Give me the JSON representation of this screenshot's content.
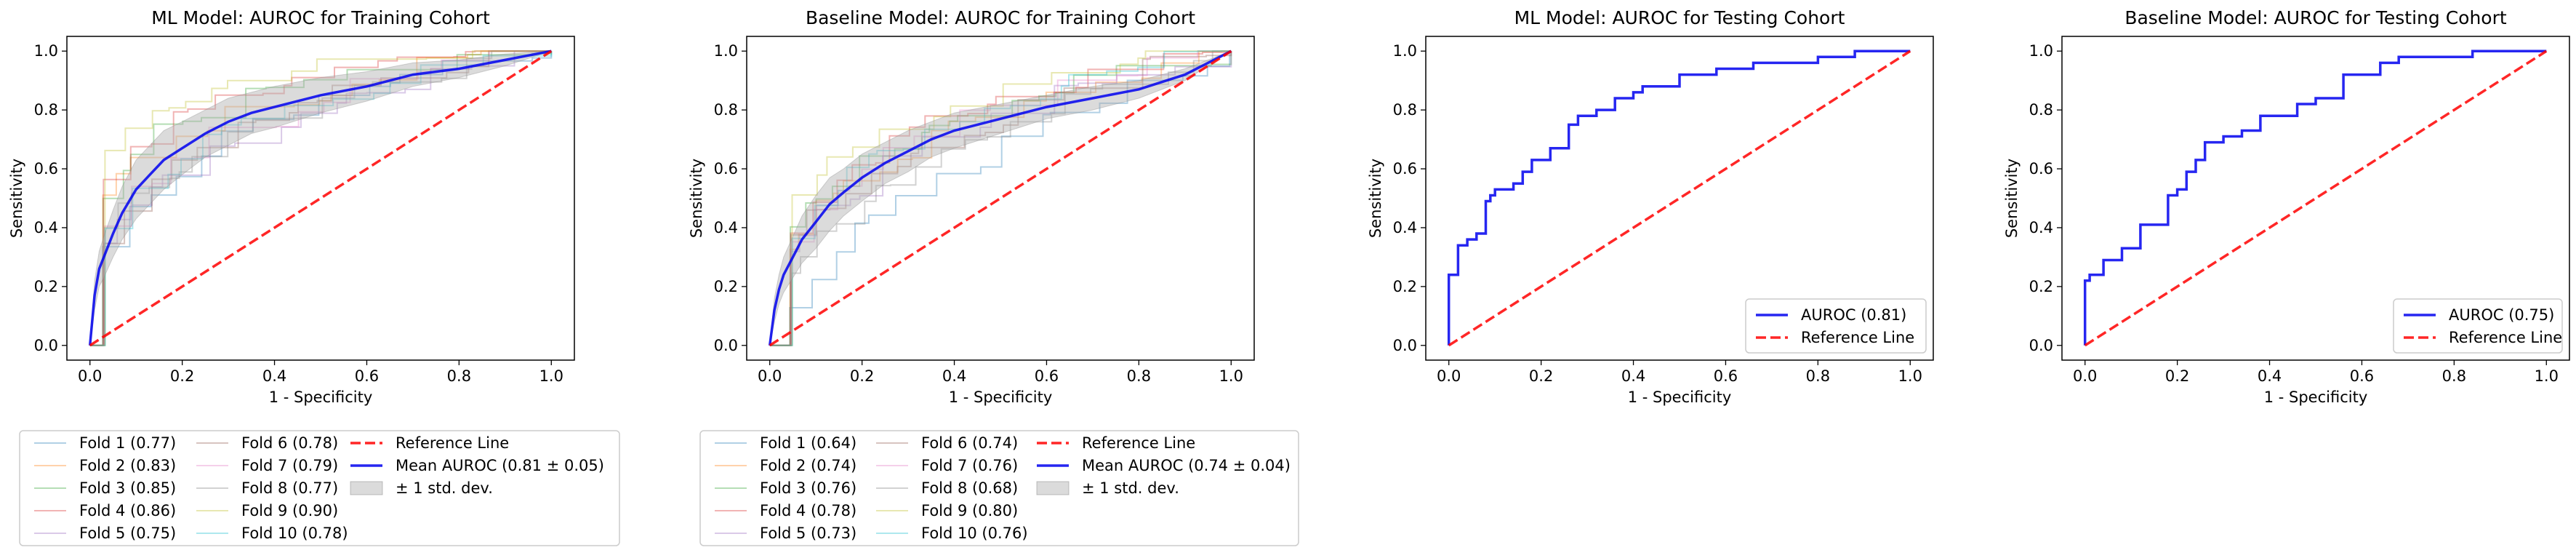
{
  "colors": {
    "mean": "#0000ee",
    "reference": "#ff0000",
    "band": "#b0b0b0",
    "folds": [
      "#1f77b4",
      "#ff7f0e",
      "#2ca02c",
      "#d62728",
      "#9467bd",
      "#8c564b",
      "#e377c2",
      "#7f7f7f",
      "#bcbd22",
      "#17becf"
    ]
  },
  "chart_data": [
    {
      "type": "line",
      "title": "ML Model: AUROC for Training Cohort",
      "xlabel": "1 - Specificity",
      "ylabel": "Sensitivity",
      "xlim": [
        -0.05,
        1.05
      ],
      "ylim": [
        -0.05,
        1.05
      ],
      "xticks": [
        "0.0",
        "0.2",
        "0.4",
        "0.6",
        "0.8",
        "1.0"
      ],
      "yticks": [
        "0.0",
        "0.2",
        "0.4",
        "0.6",
        "0.8",
        "1.0"
      ],
      "grid": false,
      "legend_placement": "below",
      "folds": [
        {
          "name": "Fold 1 (0.77)",
          "auc": 0.77
        },
        {
          "name": "Fold 2 (0.83)",
          "auc": 0.83
        },
        {
          "name": "Fold 3 (0.85)",
          "auc": 0.85
        },
        {
          "name": "Fold 4 (0.86)",
          "auc": 0.86
        },
        {
          "name": "Fold 5 (0.75)",
          "auc": 0.75
        },
        {
          "name": "Fold 6 (0.78)",
          "auc": 0.78
        },
        {
          "name": "Fold 7 (0.79)",
          "auc": 0.79
        },
        {
          "name": "Fold 8 (0.77)",
          "auc": 0.77
        },
        {
          "name": "Fold 9 (0.90)",
          "auc": 0.9
        },
        {
          "name": "Fold 10 (0.78)",
          "auc": 0.78
        }
      ],
      "mean": {
        "name": "Mean AUROC (0.81 ± 0.05)",
        "x": [
          0,
          0.01,
          0.02,
          0.03,
          0.05,
          0.07,
          0.1,
          0.13,
          0.16,
          0.2,
          0.25,
          0.3,
          0.35,
          0.4,
          0.5,
          0.6,
          0.7,
          0.8,
          0.9,
          1.0
        ],
        "y": [
          0,
          0.17,
          0.26,
          0.3,
          0.38,
          0.45,
          0.53,
          0.58,
          0.63,
          0.67,
          0.72,
          0.76,
          0.79,
          0.81,
          0.85,
          0.88,
          0.92,
          0.94,
          0.97,
          1.0
        ],
        "std": [
          0,
          0.05,
          0.06,
          0.07,
          0.08,
          0.09,
          0.1,
          0.1,
          0.1,
          0.09,
          0.08,
          0.08,
          0.07,
          0.07,
          0.06,
          0.05,
          0.04,
          0.03,
          0.02,
          0
        ]
      },
      "reference_label": "Reference Line",
      "band_label": "± 1 std. dev."
    },
    {
      "type": "line",
      "title": "Baseline Model: AUROC for Training Cohort",
      "xlabel": "1 - Specificity",
      "ylabel": "Sensitivity",
      "xlim": [
        -0.05,
        1.05
      ],
      "ylim": [
        -0.05,
        1.05
      ],
      "xticks": [
        "0.0",
        "0.2",
        "0.4",
        "0.6",
        "0.8",
        "1.0"
      ],
      "yticks": [
        "0.0",
        "0.2",
        "0.4",
        "0.6",
        "0.8",
        "1.0"
      ],
      "grid": false,
      "legend_placement": "below",
      "folds": [
        {
          "name": "Fold 1 (0.64)",
          "auc": 0.64
        },
        {
          "name": "Fold 2 (0.74)",
          "auc": 0.74
        },
        {
          "name": "Fold 3 (0.76)",
          "auc": 0.76
        },
        {
          "name": "Fold 4 (0.78)",
          "auc": 0.78
        },
        {
          "name": "Fold 5 (0.73)",
          "auc": 0.73
        },
        {
          "name": "Fold 6 (0.74)",
          "auc": 0.74
        },
        {
          "name": "Fold 7 (0.76)",
          "auc": 0.76
        },
        {
          "name": "Fold 8 (0.68)",
          "auc": 0.68
        },
        {
          "name": "Fold 9 (0.80)",
          "auc": 0.8
        },
        {
          "name": "Fold 10 (0.76)",
          "auc": 0.76
        }
      ],
      "mean": {
        "name": "Mean AUROC (0.74 ± 0.04)",
        "x": [
          0,
          0.01,
          0.02,
          0.03,
          0.05,
          0.07,
          0.1,
          0.13,
          0.16,
          0.2,
          0.25,
          0.3,
          0.35,
          0.4,
          0.5,
          0.6,
          0.7,
          0.8,
          0.9,
          1.0
        ],
        "y": [
          0,
          0.12,
          0.19,
          0.24,
          0.3,
          0.36,
          0.42,
          0.48,
          0.52,
          0.57,
          0.62,
          0.66,
          0.7,
          0.73,
          0.77,
          0.81,
          0.84,
          0.87,
          0.92,
          1.0
        ],
        "std": [
          0,
          0.04,
          0.05,
          0.06,
          0.07,
          0.08,
          0.09,
          0.09,
          0.08,
          0.08,
          0.07,
          0.07,
          0.06,
          0.06,
          0.05,
          0.04,
          0.04,
          0.03,
          0.02,
          0
        ]
      },
      "reference_label": "Reference Line",
      "band_label": "± 1 std. dev."
    },
    {
      "type": "line",
      "title": "ML Model: AUROC for Testing Cohort",
      "xlabel": "1 - Specificity",
      "ylabel": "Sensitivity",
      "xlim": [
        -0.05,
        1.05
      ],
      "ylim": [
        -0.05,
        1.05
      ],
      "xticks": [
        "0.0",
        "0.2",
        "0.4",
        "0.6",
        "0.8",
        "1.0"
      ],
      "yticks": [
        "0.0",
        "0.2",
        "0.4",
        "0.6",
        "0.8",
        "1.0"
      ],
      "grid": false,
      "legend_placement": "lower right",
      "series": [
        {
          "name": "AUROC (0.81)",
          "x": [
            0,
            0,
            0.02,
            0.02,
            0.04,
            0.04,
            0.06,
            0.06,
            0.08,
            0.08,
            0.09,
            0.09,
            0.1,
            0.1,
            0.14,
            0.14,
            0.16,
            0.16,
            0.18,
            0.18,
            0.22,
            0.22,
            0.26,
            0.26,
            0.28,
            0.28,
            0.32,
            0.32,
            0.36,
            0.36,
            0.4,
            0.4,
            0.42,
            0.42,
            0.5,
            0.5,
            0.58,
            0.58,
            0.66,
            0.66,
            0.8,
            0.8,
            0.88,
            0.88,
            1.0
          ],
          "y": [
            0,
            0.24,
            0.24,
            0.34,
            0.34,
            0.36,
            0.36,
            0.38,
            0.38,
            0.49,
            0.49,
            0.51,
            0.51,
            0.53,
            0.53,
            0.55,
            0.55,
            0.59,
            0.59,
            0.63,
            0.63,
            0.67,
            0.67,
            0.75,
            0.75,
            0.78,
            0.78,
            0.8,
            0.8,
            0.84,
            0.84,
            0.86,
            0.86,
            0.88,
            0.88,
            0.92,
            0.92,
            0.94,
            0.94,
            0.96,
            0.96,
            0.98,
            0.98,
            1.0,
            1.0
          ]
        }
      ],
      "reference_label": "Reference Line"
    },
    {
      "type": "line",
      "title": "Baseline Model: AUROC for Testing Cohort",
      "xlabel": "1 - Specificity",
      "ylabel": "Sensitivity",
      "xlim": [
        -0.05,
        1.05
      ],
      "ylim": [
        -0.05,
        1.05
      ],
      "xticks": [
        "0.0",
        "0.2",
        "0.4",
        "0.6",
        "0.8",
        "1.0"
      ],
      "yticks": [
        "0.0",
        "0.2",
        "0.4",
        "0.6",
        "0.8",
        "1.0"
      ],
      "grid": false,
      "legend_placement": "lower right",
      "series": [
        {
          "name": "AUROC (0.75)",
          "x": [
            0,
            0,
            0.01,
            0.01,
            0.04,
            0.04,
            0.08,
            0.08,
            0.12,
            0.12,
            0.18,
            0.18,
            0.2,
            0.2,
            0.22,
            0.22,
            0.24,
            0.24,
            0.26,
            0.26,
            0.3,
            0.3,
            0.34,
            0.34,
            0.38,
            0.38,
            0.46,
            0.46,
            0.5,
            0.5,
            0.56,
            0.56,
            0.64,
            0.64,
            0.68,
            0.68,
            0.84,
            0.84,
            1.0
          ],
          "y": [
            0,
            0.22,
            0.22,
            0.24,
            0.24,
            0.29,
            0.29,
            0.33,
            0.33,
            0.41,
            0.41,
            0.51,
            0.51,
            0.53,
            0.53,
            0.59,
            0.59,
            0.63,
            0.63,
            0.69,
            0.69,
            0.71,
            0.71,
            0.73,
            0.73,
            0.78,
            0.78,
            0.82,
            0.82,
            0.84,
            0.84,
            0.92,
            0.92,
            0.96,
            0.96,
            0.98,
            0.98,
            1.0,
            1.0
          ]
        }
      ],
      "reference_label": "Reference Line"
    }
  ]
}
